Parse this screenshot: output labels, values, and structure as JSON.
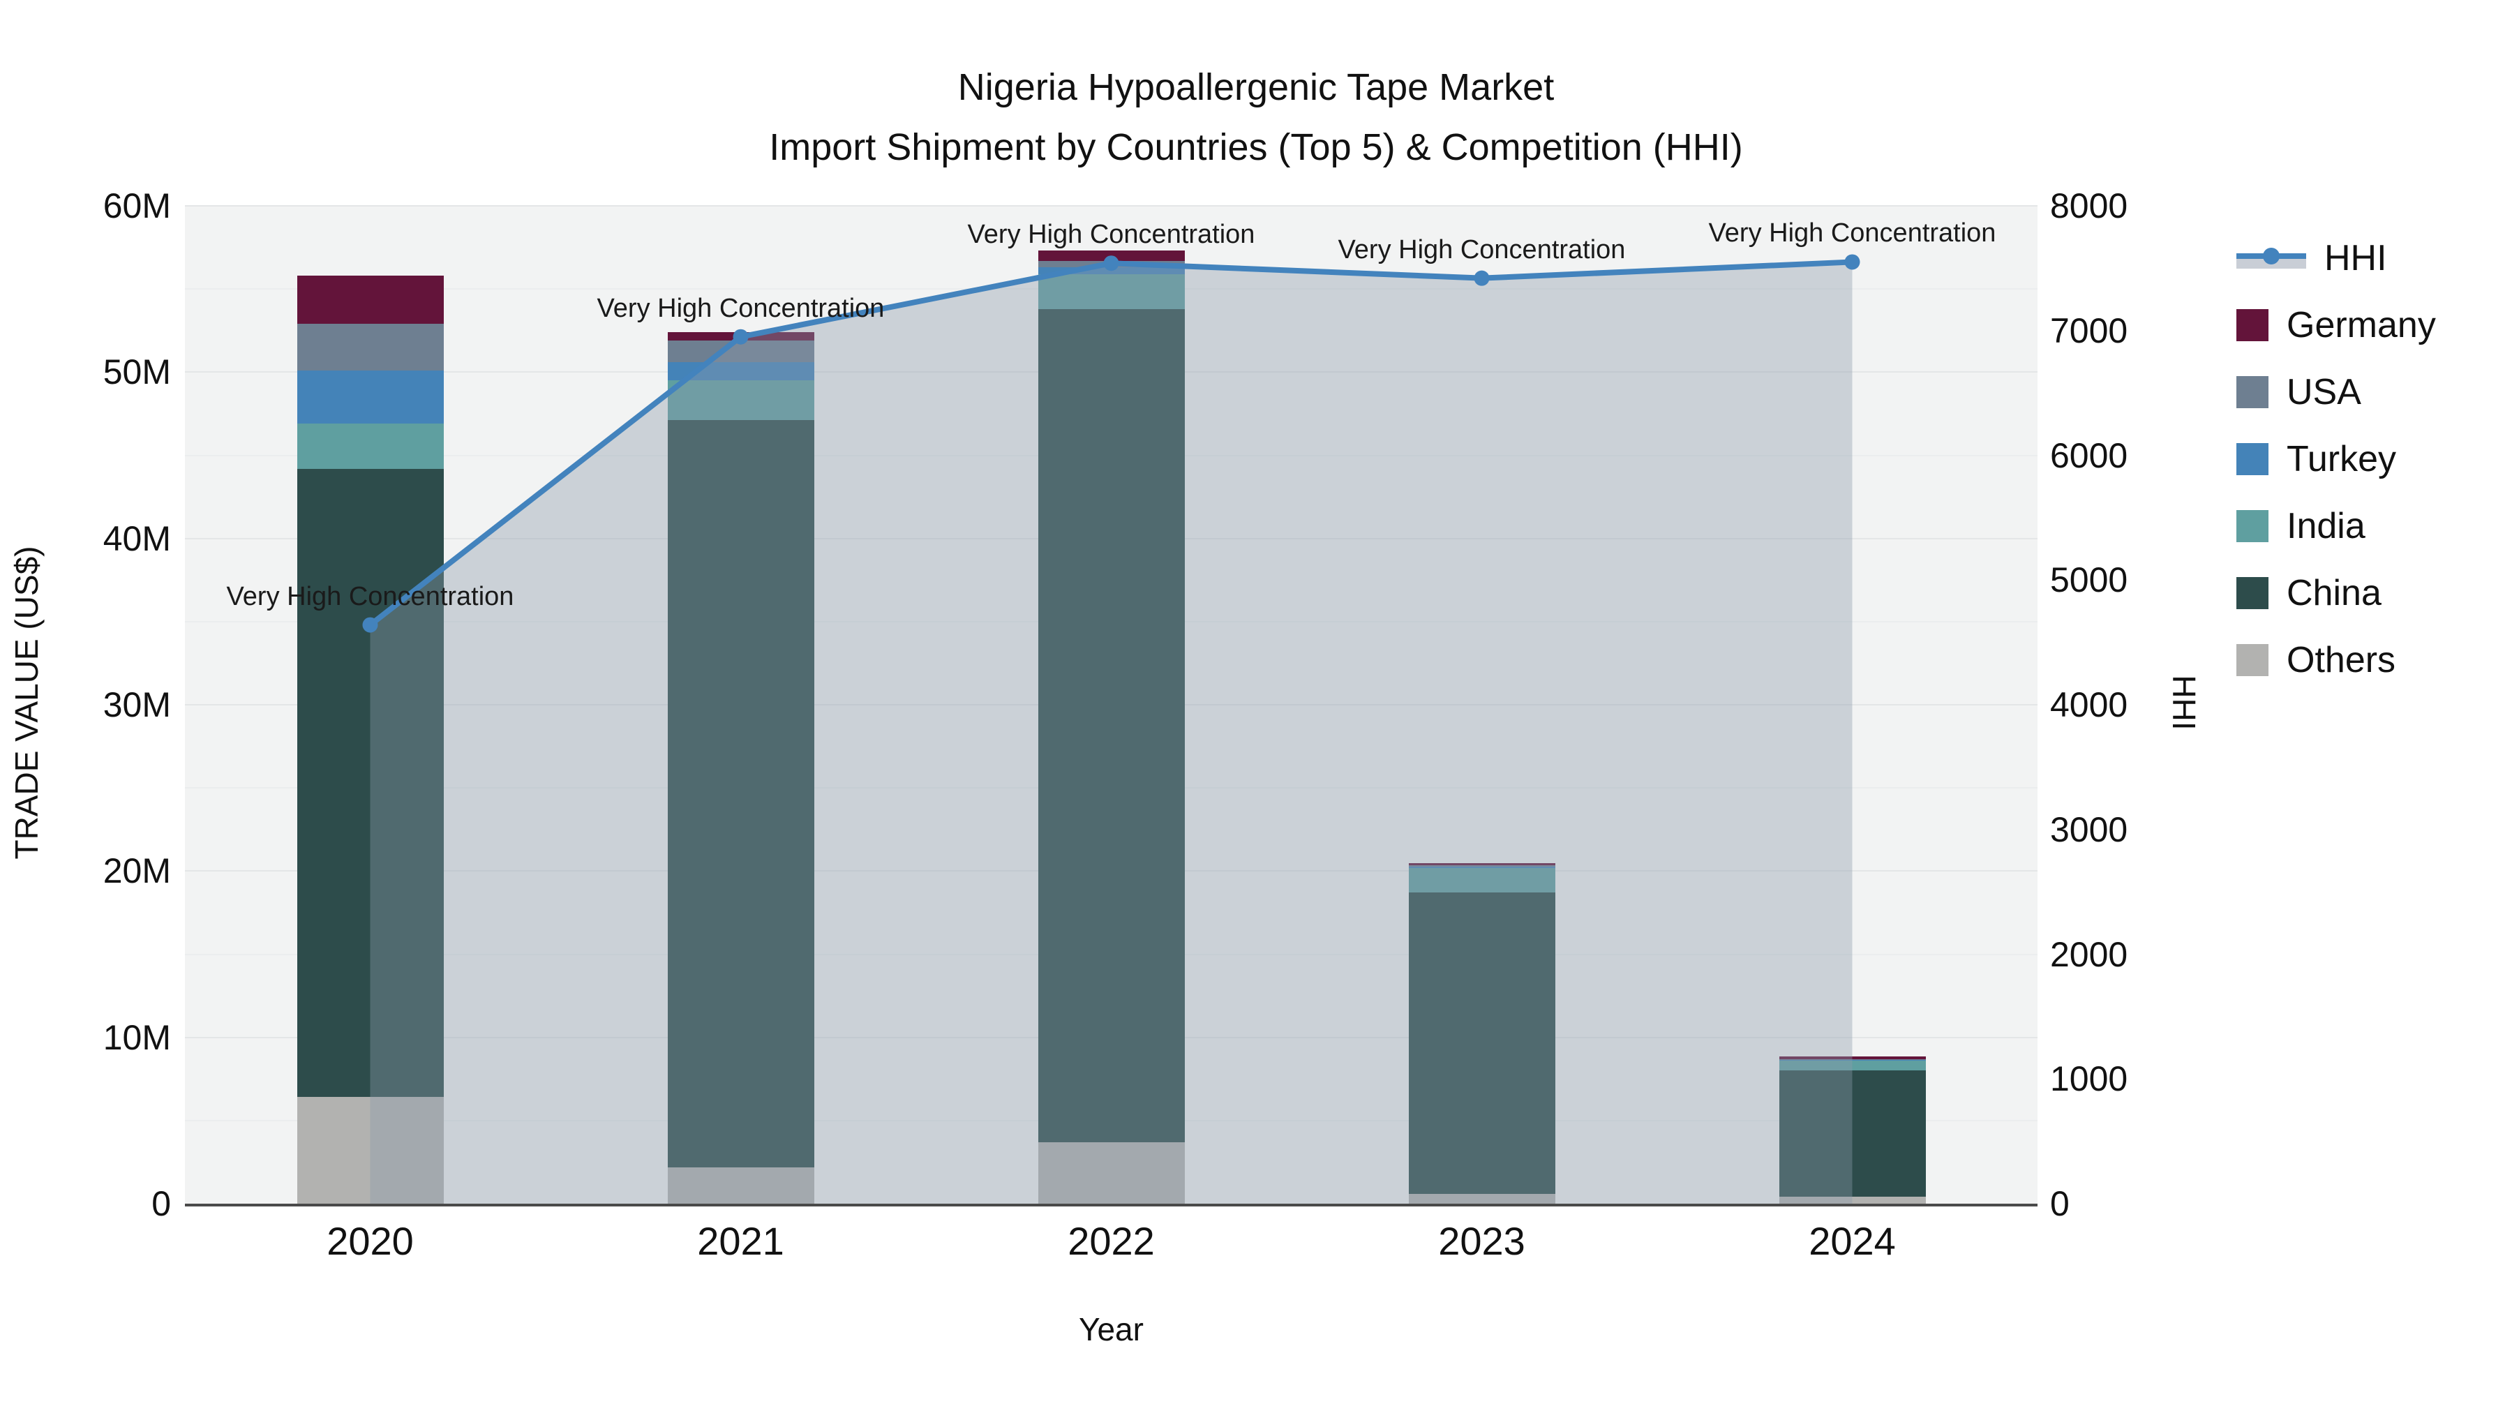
{
  "title": {
    "line1": "Nigeria Hypoallergenic Tape Market",
    "line2": "Import Shipment by Countries (Top 5) & Competition (HHI)"
  },
  "axes": {
    "y_left": {
      "title": "TRADE VALUE (US$)",
      "tick_labels": [
        "0",
        "10M",
        "20M",
        "30M",
        "40M",
        "50M",
        "60M"
      ],
      "tick_values_musd": [
        0,
        10,
        20,
        30,
        40,
        50,
        60
      ]
    },
    "y_right": {
      "title": "HHI",
      "tick_labels": [
        "0",
        "1000",
        "2000",
        "3000",
        "4000",
        "5000",
        "6000",
        "7000",
        "8000"
      ],
      "tick_values": [
        0,
        1000,
        2000,
        3000,
        4000,
        5000,
        6000,
        7000,
        8000
      ]
    },
    "x": {
      "title": "Year",
      "tick_labels": [
        "2020",
        "2021",
        "2022",
        "2023",
        "2024"
      ]
    }
  },
  "legend": {
    "items": [
      {
        "label": "HHI",
        "type": "line",
        "color": "#4383bd"
      },
      {
        "label": "Germany",
        "type": "square",
        "color": "#63143a"
      },
      {
        "label": "USA",
        "type": "square",
        "color": "#6e7f91"
      },
      {
        "label": "Turkey",
        "type": "square",
        "color": "#4483b8"
      },
      {
        "label": "India",
        "type": "square",
        "color": "#5f9fa0"
      },
      {
        "label": "China",
        "type": "square",
        "color": "#2d4c4b"
      },
      {
        "label": "Others",
        "type": "square",
        "color": "#b2b2b0"
      }
    ]
  },
  "chart_data": {
    "type": "bar+line",
    "title": "Nigeria Hypoallergenic Tape Market — Import Shipment by Countries (Top 5) & Competition (HHI)",
    "categories": [
      "2020",
      "2021",
      "2022",
      "2023",
      "2024"
    ],
    "xlabel": "Year",
    "ylabel_left": "TRADE VALUE (US$)",
    "ylabel_right": "HHI",
    "ylim_left_musd": [
      0,
      60
    ],
    "ylim_right": [
      0,
      8000
    ],
    "grid": "horizontal, every 5M (major every 10M), on left axis",
    "legend_position": "right",
    "bar_unit": "million US$ (estimated from pixel positions)",
    "bar_stack_order_bottom_to_top": [
      "Others",
      "China",
      "India",
      "Turkey",
      "USA",
      "Germany"
    ],
    "series": [
      {
        "name": "Others",
        "color": "#b2b2b0",
        "values_musd": [
          6.4,
          2.2,
          3.7,
          0.6,
          0.42
        ]
      },
      {
        "name": "China",
        "color": "#2d4c4b",
        "values_musd": [
          37.8,
          44.9,
          50.1,
          18.1,
          7.6
        ]
      },
      {
        "name": "India",
        "color": "#5f9fa0",
        "values_musd": [
          2.7,
          2.4,
          2.1,
          1.5,
          0.57
        ]
      },
      {
        "name": "Turkey",
        "color": "#4483b8",
        "values_musd": [
          3.2,
          1.1,
          0.4,
          0.07,
          0.05
        ]
      },
      {
        "name": "USA",
        "color": "#6e7f91",
        "values_musd": [
          2.8,
          1.3,
          0.4,
          0.07,
          0.03
        ]
      },
      {
        "name": "Germany",
        "color": "#63143a",
        "values_musd": [
          2.9,
          0.5,
          0.6,
          0.15,
          0.2
        ]
      }
    ],
    "bar_totals_musd": [
      55.8,
      52.4,
      57.3,
      20.5,
      8.9
    ],
    "line_series": {
      "name": "HHI",
      "axis": "right",
      "color": "#4383bd",
      "area_fill": "rgba(140,155,172,0.38)",
      "marker_radius_px": 11,
      "values": [
        4640,
        6950,
        7540,
        7420,
        7550
      ]
    },
    "annotations": [
      {
        "category": "2020",
        "text": "Very High Concentration"
      },
      {
        "category": "2021",
        "text": "Very High Concentration"
      },
      {
        "category": "2022",
        "text": "Very High Concentration"
      },
      {
        "category": "2023",
        "text": "Very High Concentration"
      },
      {
        "category": "2024",
        "text": "Very High Concentration"
      }
    ]
  }
}
